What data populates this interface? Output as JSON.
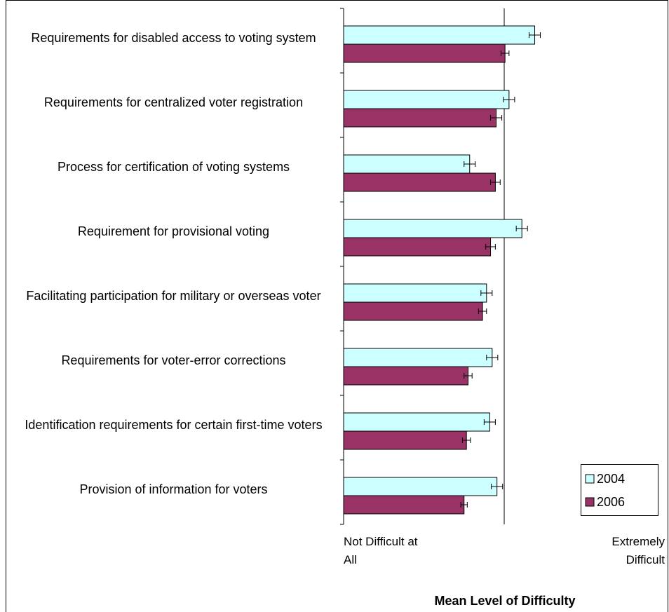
{
  "chart_data": {
    "type": "bar",
    "orientation": "horizontal",
    "x_label": "Mean Level of Difficulty",
    "categories": [
      "Requirements for disabled access to voting system",
      "Requirements for centralized voter registration",
      "Process for certification of voting systems",
      "Requirement for provisional voting",
      "Facilitating participation for military or overseas voter",
      "Requirements for voter-error corrections",
      "Identification requirements for certain first-time voters",
      "Provision of information for voters"
    ],
    "series": [
      {
        "name": "2004",
        "color": "#ccffff",
        "values": [
          3.38,
          3.06,
          2.57,
          3.22,
          2.78,
          2.85,
          2.82,
          2.91
        ],
        "errors": [
          0.07,
          0.07,
          0.07,
          0.07,
          0.07,
          0.07,
          0.07,
          0.07
        ]
      },
      {
        "name": "2006",
        "color": "#993366",
        "values": [
          3.01,
          2.9,
          2.89,
          2.83,
          2.73,
          2.55,
          2.53,
          2.5
        ],
        "errors": [
          0.05,
          0.07,
          0.06,
          0.06,
          0.05,
          0.05,
          0.05,
          0.04
        ]
      }
    ],
    "xlim": [
      1,
      5
    ],
    "xticks": [
      {
        "value": 1,
        "label": "Not Difficult at All"
      },
      {
        "value": 5,
        "label": "Extremely Difficult"
      }
    ],
    "reference_line": 3,
    "legend": "bottom-right"
  }
}
